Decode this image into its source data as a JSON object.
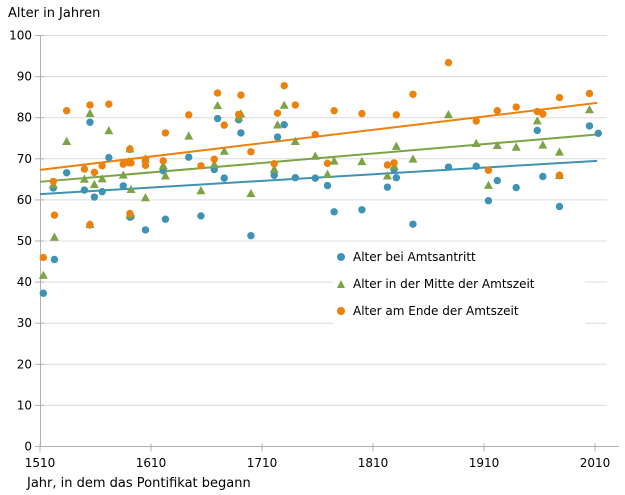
{
  "header": {
    "title": "Alter in Jahren"
  },
  "chart_data": {
    "type": "scatter",
    "title": "Alter in Jahren",
    "xlabel": "Jahr, in dem das Pontifikat begann",
    "ylabel": "",
    "xlim": [
      1510,
      2021
    ],
    "ylim": [
      0,
      100
    ],
    "x_ticks": [
      1510,
      1610,
      1710,
      1810,
      1910,
      2010
    ],
    "y_ticks": [
      0,
      10,
      20,
      30,
      40,
      50,
      60,
      70,
      80,
      90,
      100
    ],
    "grid": "horizontal gridlines only",
    "legend_position": "inside right-middle, white background",
    "x": [
      1513,
      1522,
      1523,
      1534,
      1550,
      1555,
      1555,
      1559,
      1566,
      1572,
      1585,
      1590,
      1591,
      1591,
      1592,
      1605,
      1605,
      1621,
      1623,
      1644,
      1655,
      1667,
      1670,
      1676,
      1689,
      1691,
      1700,
      1721,
      1724,
      1730,
      1740,
      1758,
      1769,
      1775,
      1800,
      1823,
      1829,
      1831,
      1846,
      1878,
      1903,
      1914,
      1922,
      1939,
      1958,
      1963,
      1978,
      1978,
      2005,
      2013
    ],
    "series": [
      {
        "name": "Alter bei Amtsantritt",
        "marker": "circle",
        "color": "#3e93b4",
        "values": [
          37.3,
          62.9,
          45.5,
          66.6,
          62.4,
          53.9,
          78.9,
          60.7,
          62.0,
          70.3,
          63.4,
          69.1,
          55.8,
          72.3,
          55.9,
          69.8,
          52.7,
          67.1,
          55.3,
          70.4,
          56.1,
          67.4,
          79.8,
          65.3,
          79.5,
          76.3,
          51.3,
          66.0,
          75.3,
          78.3,
          65.4,
          65.3,
          63.5,
          57.1,
          57.6,
          63.1,
          67.4,
          65.4,
          54.1,
          68.0,
          68.2,
          59.8,
          64.7,
          63.0,
          76.9,
          65.7,
          65.9,
          58.4,
          78.0,
          76.2
        ]
      },
      {
        "name": "Alter in der Mitte der Amtszeit",
        "marker": "triangle",
        "color": "#7ca346",
        "values": [
          41.6,
          63.7,
          50.9,
          74.2,
          65.0,
          54.0,
          81.0,
          63.7,
          65.1,
          76.8,
          66.0,
          69.2,
          56.3,
          72.4,
          62.5,
          69.9,
          60.5,
          68.3,
          65.8,
          75.5,
          62.2,
          68.6,
          82.9,
          71.8,
          80.1,
          80.9,
          61.5,
          67.4,
          78.2,
          83.0,
          74.2,
          70.6,
          66.2,
          69.4,
          69.3,
          65.8,
          68.2,
          73.0,
          69.9,
          80.7,
          73.7,
          63.5,
          73.2,
          72.8,
          79.2,
          73.3,
          65.9,
          71.6,
          81.9,
          null
        ]
      },
      {
        "name": "Alter am Ende der Amtszeit",
        "marker": "circle",
        "color": "#ec820d",
        "values": [
          46.0,
          64.5,
          56.3,
          81.7,
          67.5,
          54.0,
          83.1,
          66.7,
          68.3,
          83.3,
          68.7,
          69.2,
          56.7,
          72.4,
          69.0,
          69.9,
          68.4,
          69.5,
          76.3,
          80.7,
          68.3,
          69.9,
          86.0,
          78.2,
          80.8,
          85.5,
          71.7,
          68.8,
          81.1,
          87.8,
          83.1,
          75.9,
          68.9,
          81.7,
          81.0,
          68.5,
          69.0,
          80.7,
          85.7,
          93.4,
          79.2,
          67.2,
          81.7,
          82.6,
          81.5,
          80.9,
          66.0,
          84.9,
          85.9,
          null
        ]
      }
    ],
    "trend_lines": [
      {
        "series": "Alter bei Amtsantritt",
        "color": "#3e93b4",
        "from": [
          1510,
          61.4
        ],
        "to": [
          2012,
          69.5
        ]
      },
      {
        "series": "Alter in der Mitte der Amtszeit",
        "color": "#7ca346",
        "from": [
          1510,
          64.4
        ],
        "to": [
          2012,
          75.9
        ]
      },
      {
        "series": "Alter am Ende der Amtszeit",
        "color": "#ec820d",
        "from": [
          1510,
          67.3
        ],
        "to": [
          2012,
          83.6
        ]
      }
    ],
    "colors": {
      "grid": "#dcdcdc",
      "axis": "#b0b0b0",
      "text": "#000000"
    }
  }
}
